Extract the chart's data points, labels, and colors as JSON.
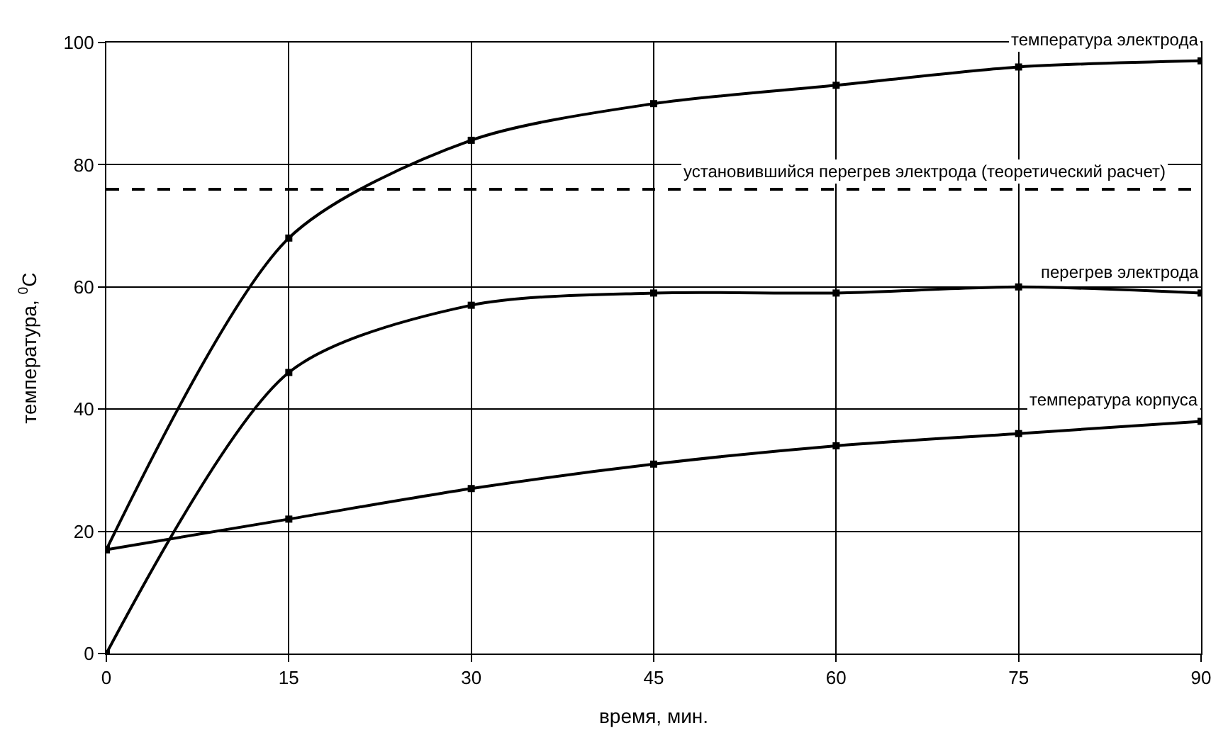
{
  "chart_data": {
    "type": "line",
    "xlabel": "время, мин.",
    "ylabel": "температура, $^{0}$C",
    "x": [
      0,
      15,
      30,
      45,
      60,
      75,
      90
    ],
    "series": [
      {
        "name": "температура электрода",
        "color": "#000000",
        "values": [
          17,
          68,
          84,
          90,
          93,
          96,
          97
        ]
      },
      {
        "name": "перегрев электрода",
        "color": "#000000",
        "values": [
          0,
          46,
          57,
          59,
          59,
          60,
          59
        ]
      },
      {
        "name": "температура корпуса",
        "color": "#000000",
        "values": [
          17,
          22,
          27,
          31,
          34,
          36,
          38
        ]
      }
    ],
    "ref_lines": [
      {
        "axis": "y",
        "value": 76,
        "label": "установившийся перегрев электрода (теоретический расчет)",
        "color": "#000000",
        "line_style": "dashed"
      }
    ],
    "xlim": [
      0,
      90
    ],
    "xticks": [
      0,
      15,
      30,
      45,
      60,
      75,
      90
    ],
    "ylim": [
      0,
      100
    ],
    "yticks": [
      0,
      20,
      40,
      60,
      80,
      100
    ],
    "grid": true,
    "legend": false,
    "marker": "square",
    "line_style": "solid"
  }
}
